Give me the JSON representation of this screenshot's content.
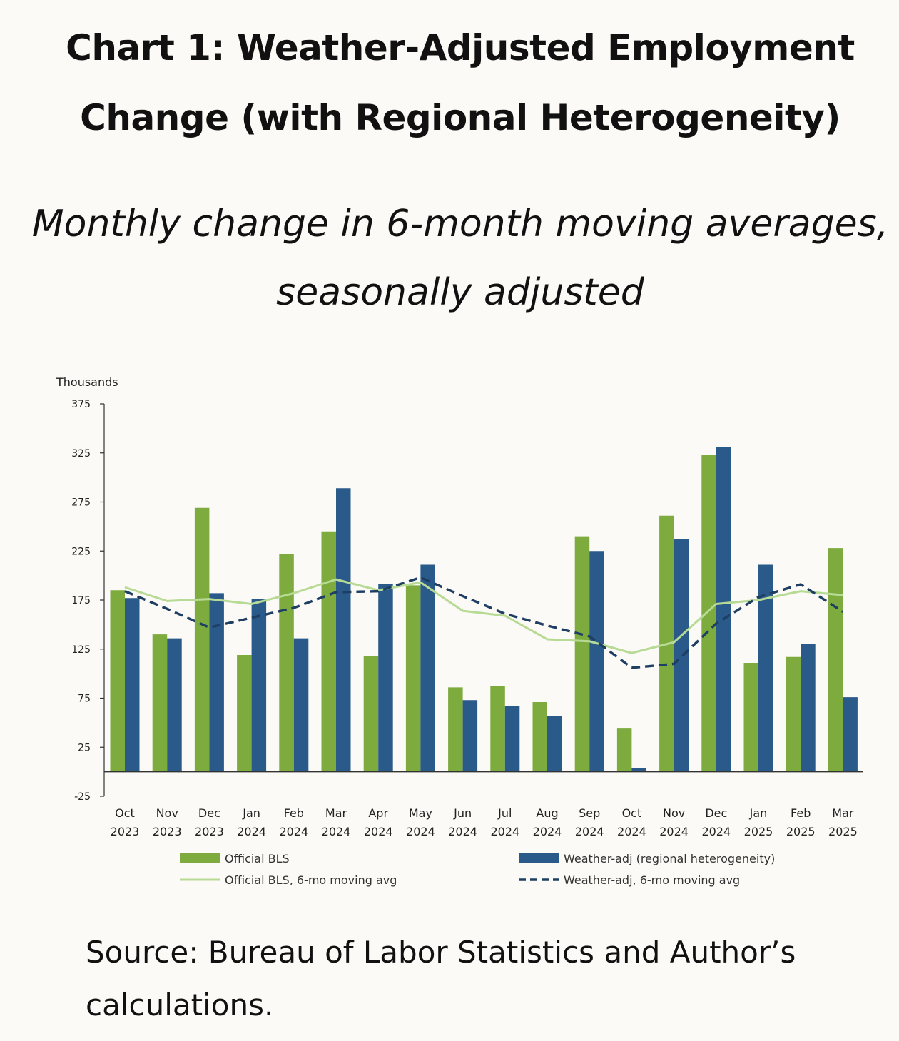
{
  "title": "Chart 1: Weather-Adjusted Employment Change (with Regional Heterogeneity)",
  "subtitle": "Monthly change in 6-month moving averages, seasonally adjusted",
  "source": "Source: Bureau of Labor Statistics and Author’s calculations.",
  "chart_data": {
    "type": "bar",
    "ylabel": "Thousands",
    "ylim": [
      -25,
      375
    ],
    "yticks": [
      375,
      325,
      275,
      225,
      175,
      125,
      75,
      25,
      -25
    ],
    "grid": false,
    "legend_position": "bottom",
    "categories": [
      [
        "Oct",
        "2023"
      ],
      [
        "Nov",
        "2023"
      ],
      [
        "Dec",
        "2023"
      ],
      [
        "Jan",
        "2024"
      ],
      [
        "Feb",
        "2024"
      ],
      [
        "Mar",
        "2024"
      ],
      [
        "Apr",
        "2024"
      ],
      [
        "May",
        "2024"
      ],
      [
        "Jun",
        "2024"
      ],
      [
        "Jul",
        "2024"
      ],
      [
        "Aug",
        "2024"
      ],
      [
        "Sep",
        "2024"
      ],
      [
        "Oct",
        "2024"
      ],
      [
        "Nov",
        "2024"
      ],
      [
        "Dec",
        "2024"
      ],
      [
        "Jan",
        "2025"
      ],
      [
        "Feb",
        "2025"
      ],
      [
        "Mar",
        "2025"
      ]
    ],
    "series": [
      {
        "name": "Official BLS",
        "kind": "bar",
        "color": "#7dab3e",
        "values": [
          185,
          140,
          269,
          119,
          222,
          245,
          118,
          190,
          86,
          87,
          71,
          240,
          44,
          261,
          323,
          111,
          117,
          228
        ]
      },
      {
        "name": "Weather-adj (regional heterogeneity)",
        "kind": "bar",
        "color": "#2a5a8a",
        "values": [
          177,
          136,
          182,
          176,
          136,
          289,
          191,
          211,
          73,
          67,
          57,
          225,
          4,
          237,
          331,
          211,
          130,
          76
        ]
      },
      {
        "name": "Official BLS, 6-mo moving avg",
        "kind": "line",
        "color": "#b7da94",
        "values": [
          188,
          174,
          176,
          171,
          182,
          196,
          185,
          193,
          164,
          159,
          135,
          133,
          121,
          132,
          171,
          175,
          184,
          180
        ]
      },
      {
        "name": "Weather-adj, 6-mo moving avg",
        "kind": "dashed-line",
        "color": "#1f3e63",
        "values": [
          184,
          166,
          147,
          157,
          167,
          183,
          184,
          198,
          179,
          161,
          149,
          138,
          106,
          110,
          151,
          178,
          191,
          163
        ]
      }
    ]
  }
}
